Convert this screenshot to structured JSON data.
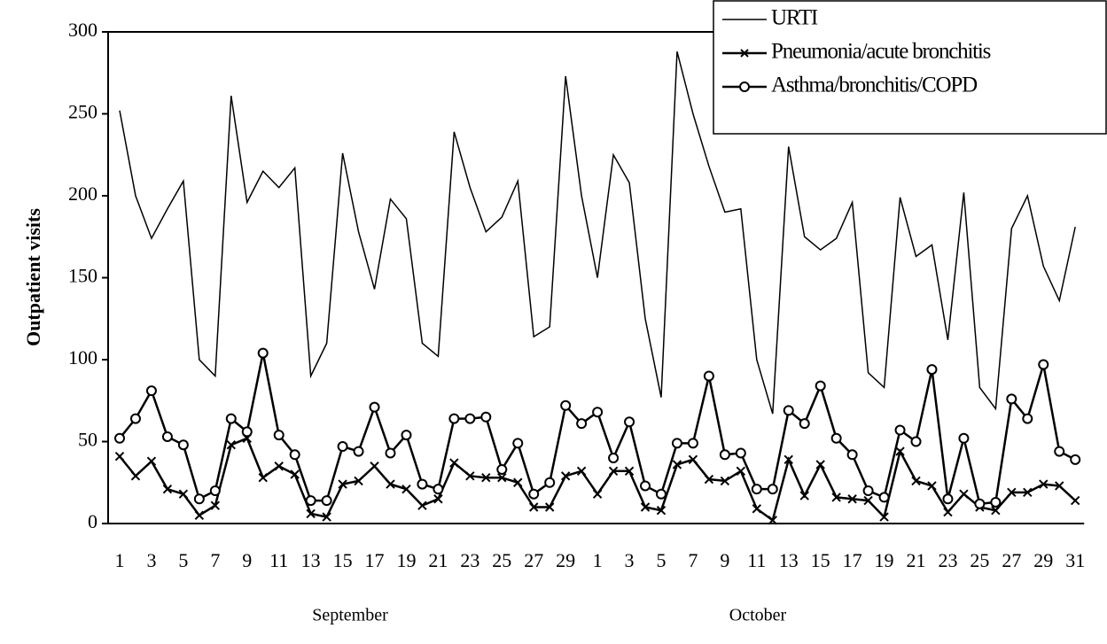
{
  "chart_data": {
    "type": "line",
    "y_label": "Outpatient visits",
    "month_labels": [
      "September",
      "October"
    ],
    "categories": [
      "1",
      null,
      "3",
      null,
      "5",
      null,
      "7",
      null,
      "9",
      null,
      "11",
      null,
      "13",
      null,
      "15",
      null,
      "17",
      null,
      "19",
      null,
      "21",
      null,
      "23",
      null,
      "25",
      null,
      "27",
      null,
      "29",
      null,
      "1",
      null,
      "3",
      null,
      "5",
      null,
      "7",
      null,
      "9",
      null,
      "11",
      null,
      "13",
      null,
      "15",
      null,
      "17",
      null,
      "19",
      null,
      "21",
      null,
      "23",
      null,
      "25",
      null,
      "27",
      null,
      "29",
      null,
      "31"
    ],
    "ylim": [
      0,
      300
    ],
    "yticks": [
      0,
      50,
      100,
      150,
      200,
      250,
      300
    ],
    "legend_position": "upper right",
    "series": [
      {
        "name": "URTI",
        "color": "#000000",
        "marker": "none",
        "values": [
          252,
          200,
          174,
          192,
          209,
          100,
          90,
          261,
          196,
          215,
          205,
          217,
          90,
          110,
          226,
          178,
          143,
          198,
          186,
          110,
          102,
          239,
          205,
          178,
          187,
          209,
          114,
          120,
          273,
          200,
          150,
          225,
          208,
          125,
          77,
          288,
          250,
          218,
          190,
          192,
          100,
          67,
          230,
          175,
          167,
          174,
          196,
          92,
          83,
          199,
          163,
          170,
          112,
          202,
          83,
          70,
          180,
          200,
          157,
          136,
          181
        ]
      },
      {
        "name": "Pneumonia/acute bronchitis",
        "color": "#000000",
        "marker": "x",
        "values": [
          41,
          29,
          38,
          21,
          18,
          5,
          11,
          48,
          52,
          28,
          35,
          30,
          6,
          4,
          24,
          26,
          35,
          24,
          21,
          11,
          15,
          37,
          29,
          28,
          28,
          25,
          10,
          10,
          29,
          32,
          18,
          32,
          32,
          10,
          8,
          36,
          39,
          27,
          26,
          32,
          9,
          2,
          39,
          17,
          36,
          16,
          15,
          14,
          4,
          44,
          26,
          23,
          7,
          18,
          10,
          8,
          19,
          19,
          24,
          23,
          14
        ]
      },
      {
        "name": "Asthma/bronchitis/COPD",
        "color": "#000000",
        "marker": "circle",
        "values": [
          52,
          64,
          81,
          53,
          48,
          15,
          20,
          64,
          56,
          104,
          54,
          42,
          14,
          14,
          47,
          44,
          71,
          43,
          54,
          24,
          21,
          64,
          64,
          65,
          33,
          49,
          18,
          25,
          72,
          61,
          68,
          40,
          62,
          23,
          18,
          49,
          49,
          90,
          42,
          43,
          21,
          21,
          69,
          61,
          84,
          52,
          42,
          20,
          16,
          57,
          50,
          94,
          15,
          52,
          12,
          13,
          76,
          64,
          97,
          44,
          39
        ]
      }
    ]
  }
}
